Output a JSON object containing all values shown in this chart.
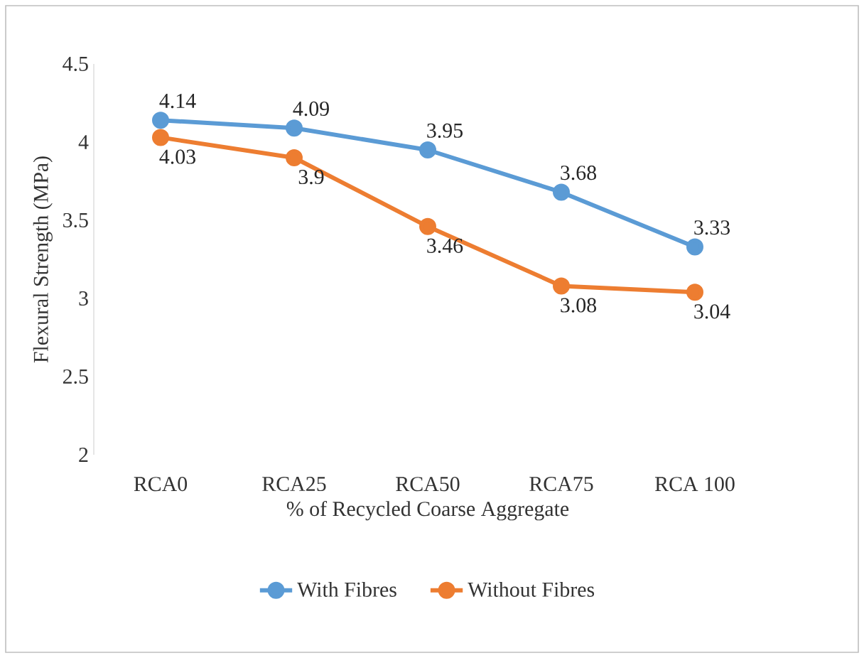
{
  "chart_data": {
    "type": "line",
    "xlabel": "% of Recycled Coarse Aggregate",
    "ylabel": "Flexural Strength (MPa)",
    "categories": [
      "RCA0",
      "RCA25",
      "RCA50",
      "RCA75",
      "RCA 100"
    ],
    "series": [
      {
        "name": "With Fibres",
        "color": "#5b9bd5",
        "values": [
          4.14,
          4.09,
          3.95,
          3.68,
          3.33
        ]
      },
      {
        "name": "Without Fibres",
        "color": "#ed7d31",
        "values": [
          4.03,
          3.9,
          3.46,
          3.08,
          3.04
        ]
      }
    ],
    "ylim": [
      2,
      4.5
    ],
    "yticks": [
      2,
      2.5,
      3,
      3.5,
      4,
      4.5
    ],
    "grid": false,
    "legend": "bottom",
    "marker": "circle",
    "line_style": "solid",
    "data_labels": true
  }
}
